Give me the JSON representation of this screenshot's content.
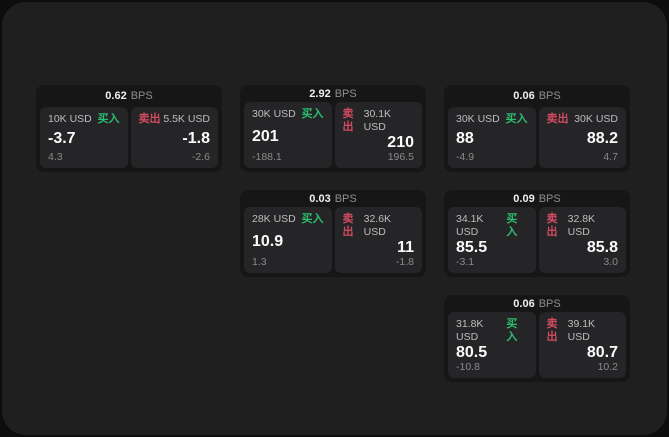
{
  "labels": {
    "bps": "BPS",
    "buy": "买入",
    "sell": "卖出"
  },
  "colors": {
    "outer": "#0d0d0d",
    "panel": "#1f1f1f",
    "card": "#161617",
    "cell": "#252527",
    "buy": "#2dbd70",
    "sell": "#d14b60"
  },
  "cards": [
    {
      "bps": "0.62",
      "buy": {
        "amount": "10K USD",
        "price": "-3.7",
        "delta": "4.3"
      },
      "sell": {
        "amount": "5.5K USD",
        "price": "-1.8",
        "delta": "-2.6"
      }
    },
    {
      "bps": "2.92",
      "buy": {
        "amount": "30K USD",
        "price": "201",
        "delta": "-188.1"
      },
      "sell": {
        "amount": "30.1K USD",
        "price": "210",
        "delta": "196.5"
      }
    },
    {
      "bps": "0.06",
      "buy": {
        "amount": "30K USD",
        "price": "88",
        "delta": "-4.9"
      },
      "sell": {
        "amount": "30K USD",
        "price": "88.2",
        "delta": "4.7"
      }
    },
    {
      "bps": "0.03",
      "buy": {
        "amount": "28K USD",
        "price": "10.9",
        "delta": "1.3"
      },
      "sell": {
        "amount": "32.6K USD",
        "price": "11",
        "delta": "-1.8"
      }
    },
    {
      "bps": "0.09",
      "buy": {
        "amount": "34.1K USD",
        "price": "85.5",
        "delta": "-3.1"
      },
      "sell": {
        "amount": "32.8K USD",
        "price": "85.8",
        "delta": "3.0"
      }
    },
    {
      "bps": "0.06",
      "buy": {
        "amount": "31.8K USD",
        "price": "80.5",
        "delta": "-10.8"
      },
      "sell": {
        "amount": "39.1K USD",
        "price": "80.7",
        "delta": "10.2"
      }
    }
  ]
}
